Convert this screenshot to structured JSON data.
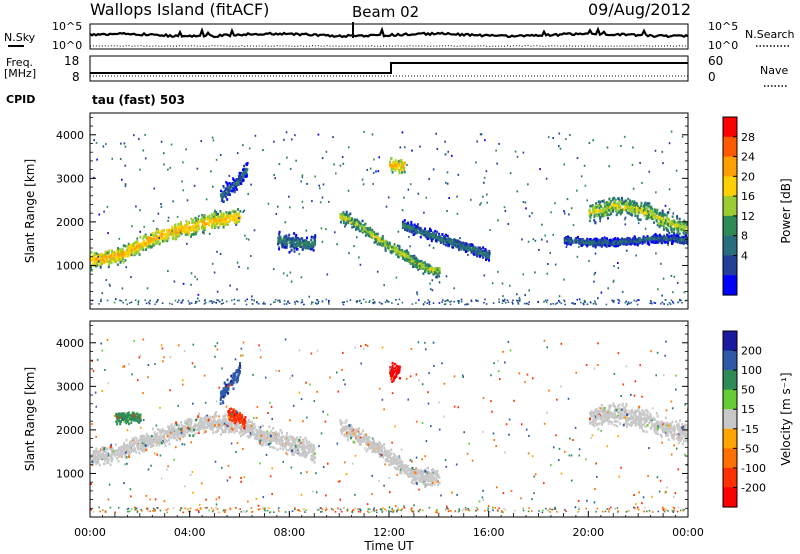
{
  "header": {
    "station": "Wallops Island (fitACF)",
    "beam": "Beam 02",
    "date": "09/Aug/2012"
  },
  "summary_panels": {
    "nsky_label": "N.Sky",
    "nsearch_label": "N.Search",
    "noise_ticks": [
      "10^5",
      "10^0"
    ],
    "freq_label_line1": "Freq.",
    "freq_label_line2": "[MHz]",
    "freq_ticks": [
      "18",
      "8"
    ],
    "nave_label": "Nave",
    "nave_ticks": [
      "60",
      "0"
    ],
    "cpid_label": "CPID",
    "cpid_value": "tau (fast) 503"
  },
  "colorbars": {
    "power": {
      "label": "Power [dB]",
      "ticks": [
        "28",
        "24",
        "20",
        "16",
        "12",
        "8",
        "4"
      ],
      "colors": [
        "#ff0000",
        "#ff5a00",
        "#ffa000",
        "#ffd000",
        "#9acd32",
        "#2e8b57",
        "#2a6e7e",
        "#20409a",
        "#0000ff"
      ]
    },
    "velocity": {
      "label": "Velocity [m s⁻¹]",
      "ticks": [
        "200",
        "100",
        "50",
        "15",
        "-15",
        "-50",
        "-100",
        "-200"
      ],
      "colors": [
        "#1a1aa0",
        "#2e5aa8",
        "#2e8b57",
        "#66cc33",
        "#c8c8c8",
        "#ffa500",
        "#ff7000",
        "#ff3000",
        "#ff0000"
      ]
    }
  },
  "chart_data": [
    {
      "type": "heatmap",
      "title": "",
      "xlabel": "",
      "ylabel": "Slant Range [km]",
      "xlim": [
        0,
        24
      ],
      "ylim": [
        0,
        4500
      ],
      "y_ticks": [
        "4000",
        "3000",
        "2000",
        "1000"
      ],
      "bands": [
        {
          "x": [
            0.0,
            0.5,
            1.0,
            1.5,
            2.0,
            2.5,
            3.0,
            3.5,
            4.0,
            4.5,
            5.0,
            5.5,
            6.0
          ],
          "y": [
            1150,
            1180,
            1250,
            1350,
            1500,
            1650,
            1750,
            1850,
            1900,
            2000,
            2050,
            2100,
            2150
          ],
          "width": 260,
          "value": 22
        },
        {
          "x": [
            7.5,
            8.0,
            8.5,
            9.0
          ],
          "y": [
            1600,
            1550,
            1500,
            1550
          ],
          "width": 260,
          "value": 12
        },
        {
          "x": [
            10.0,
            10.5,
            11.0,
            11.5,
            12.0,
            12.5,
            13.0,
            13.5,
            14.0
          ],
          "y": [
            2150,
            2050,
            1850,
            1650,
            1450,
            1300,
            1100,
            950,
            900
          ],
          "width": 180,
          "value": 18
        },
        {
          "x": [
            12.5,
            13.0,
            13.5,
            14.0,
            14.5,
            15.0,
            15.5,
            16.0
          ],
          "y": [
            1950,
            1850,
            1750,
            1650,
            1550,
            1450,
            1350,
            1250
          ],
          "width": 160,
          "value": 12
        },
        {
          "x": [
            20.0,
            20.5,
            21.0,
            21.5,
            22.0,
            22.5,
            23.0,
            23.5,
            24.0
          ],
          "y": [
            2250,
            2300,
            2400,
            2350,
            2300,
            2200,
            2050,
            1950,
            1850
          ],
          "width": 300,
          "value": 18
        },
        {
          "x": [
            19.0,
            20.0,
            21.0,
            22.0,
            23.0,
            24.0
          ],
          "y": [
            1600,
            1550,
            1550,
            1600,
            1650,
            1600
          ],
          "width": 140,
          "value": 10
        },
        {
          "x": [
            5.2,
            5.6,
            6.0,
            6.3
          ],
          "y": [
            2600,
            2800,
            3000,
            3300
          ],
          "width": 250,
          "value": 10
        },
        {
          "x": [
            12.0,
            12.3,
            12.6
          ],
          "y": [
            3350,
            3300,
            3350
          ],
          "width": 250,
          "value": 22
        }
      ]
    },
    {
      "type": "heatmap",
      "title": "",
      "xlabel": "Time UT",
      "ylabel": "Slant Range [km]",
      "xlim": [
        0,
        24
      ],
      "ylim": [
        0,
        4500
      ],
      "x_ticks": [
        "00:00",
        "04:00",
        "08:00",
        "12:00",
        "16:00",
        "20:00",
        "00:00"
      ],
      "y_ticks": [
        "4000",
        "3000",
        "2000",
        "1000"
      ],
      "bands": [
        {
          "x": [
            0.0,
            1.0,
            2.0,
            3.0,
            4.0,
            5.0,
            6.0,
            7.0,
            8.0,
            9.0
          ],
          "y": [
            1400,
            1500,
            1700,
            1900,
            2100,
            2200,
            2100,
            1900,
            1700,
            1500
          ],
          "width": 300,
          "value": 0
        },
        {
          "x": [
            10.0,
            11.0,
            12.0,
            13.0,
            14.0
          ],
          "y": [
            2100,
            1800,
            1400,
            1000,
            900
          ],
          "width": 260,
          "value": 0
        },
        {
          "x": [
            20.0,
            21.0,
            22.0,
            23.0,
            24.0
          ],
          "y": [
            2300,
            2400,
            2300,
            2100,
            1900
          ],
          "width": 340,
          "value": -5
        },
        {
          "x": [
            5.2,
            5.6,
            6.0
          ],
          "y": [
            2800,
            3100,
            3400
          ],
          "width": 260,
          "value": 120
        },
        {
          "x": [
            5.5,
            6.0,
            6.2
          ],
          "y": [
            2400,
            2300,
            2200
          ],
          "width": 200,
          "value": -120
        },
        {
          "x": [
            12.0,
            12.4
          ],
          "y": [
            3350,
            3350
          ],
          "width": 260,
          "value": -200
        },
        {
          "x": [
            1.0,
            1.5,
            2.0
          ],
          "y": [
            2300,
            2350,
            2300
          ],
          "width": 200,
          "value": 40
        }
      ]
    }
  ]
}
